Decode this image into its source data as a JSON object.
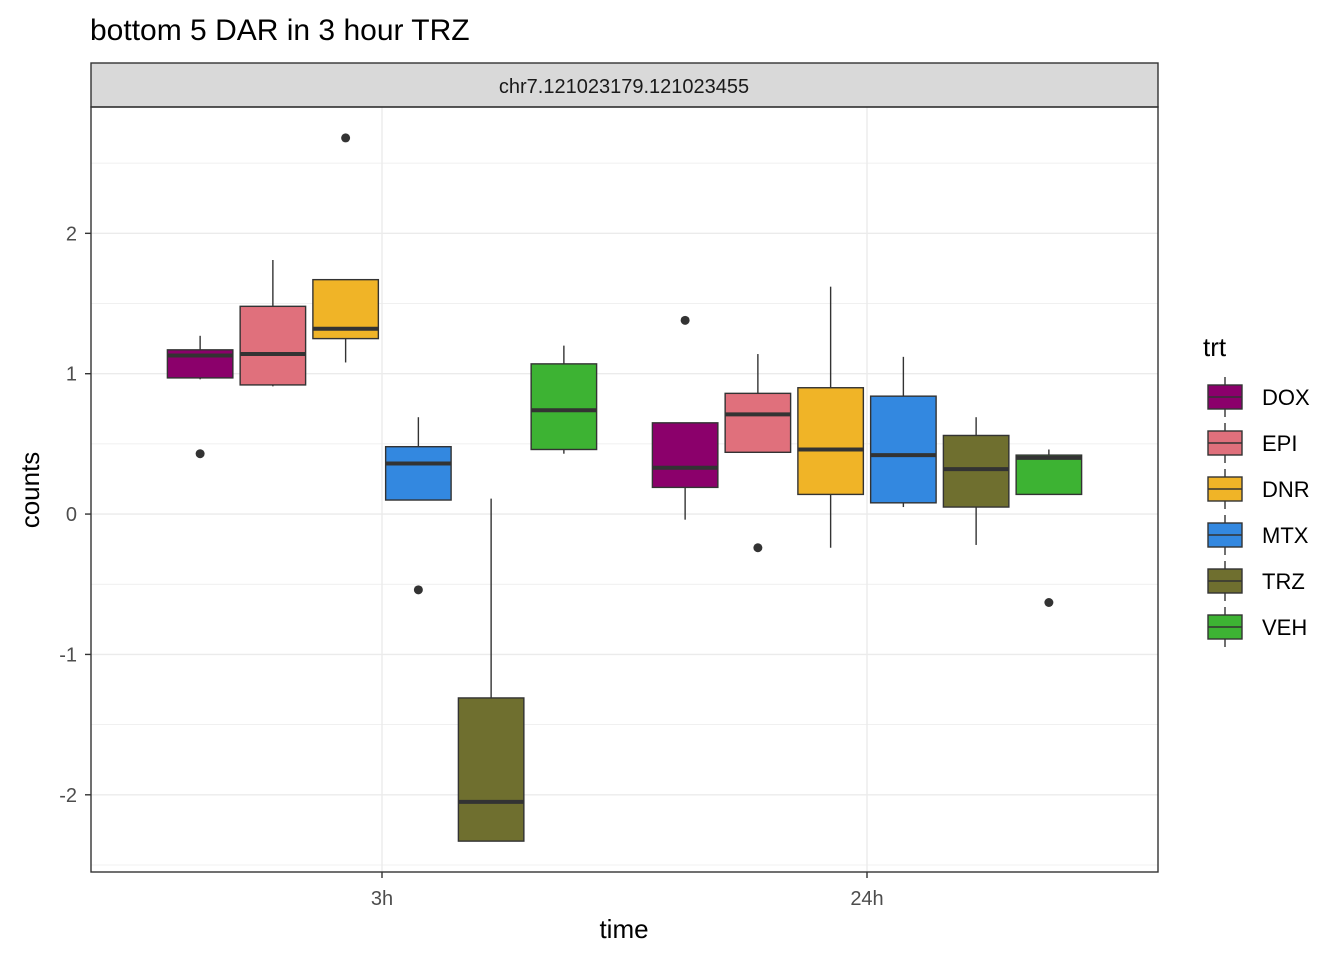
{
  "chart_data": {
    "type": "box",
    "title": "bottom 5 DAR in 3 hour TRZ",
    "facet_label": "chr7.121023179.121023455",
    "xlabel": "time",
    "ylabel": "counts",
    "categories": [
      "3h",
      "24h"
    ],
    "y_ticks": [
      -2,
      -1,
      0,
      1,
      2
    ],
    "ylim": [
      -2.55,
      2.9
    ],
    "grid": true,
    "legend": {
      "title": "trt",
      "position": "right",
      "items": [
        "DOX",
        "EPI",
        "DNR",
        "MTX",
        "TRZ",
        "VEH"
      ]
    },
    "colors": {
      "DOX": "#8B006B",
      "EPI": "#E0707C",
      "DNR": "#F0B427",
      "MTX": "#3388E0",
      "TRZ": "#6F6F2F",
      "VEH": "#3DB333"
    },
    "series": [
      {
        "name": "DOX",
        "boxes": [
          {
            "time": "3h",
            "lower_whisker": 0.96,
            "q1": 0.97,
            "median": 1.13,
            "q3": 1.17,
            "upper_whisker": 1.27,
            "outliers": [
              0.43
            ]
          },
          {
            "time": "24h",
            "lower_whisker": -0.04,
            "q1": 0.19,
            "median": 0.33,
            "q3": 0.65,
            "upper_whisker": 0.65,
            "outliers": [
              1.38
            ]
          }
        ]
      },
      {
        "name": "EPI",
        "boxes": [
          {
            "time": "3h",
            "lower_whisker": 0.91,
            "q1": 0.92,
            "median": 1.14,
            "q3": 1.48,
            "upper_whisker": 1.81,
            "outliers": []
          },
          {
            "time": "24h",
            "lower_whisker": 0.44,
            "q1": 0.44,
            "median": 0.71,
            "q3": 0.86,
            "upper_whisker": 1.14,
            "outliers": [
              -0.24
            ]
          }
        ]
      },
      {
        "name": "DNR",
        "boxes": [
          {
            "time": "3h",
            "lower_whisker": 1.08,
            "q1": 1.25,
            "median": 1.32,
            "q3": 1.67,
            "upper_whisker": 1.67,
            "outliers": [
              2.68
            ]
          },
          {
            "time": "24h",
            "lower_whisker": -0.24,
            "q1": 0.14,
            "median": 0.46,
            "q3": 0.9,
            "upper_whisker": 1.62,
            "outliers": []
          }
        ]
      },
      {
        "name": "MTX",
        "boxes": [
          {
            "time": "3h",
            "lower_whisker": 0.1,
            "q1": 0.1,
            "median": 0.36,
            "q3": 0.48,
            "upper_whisker": 0.69,
            "outliers": [
              -0.54
            ]
          },
          {
            "time": "24h",
            "lower_whisker": 0.05,
            "q1": 0.08,
            "median": 0.42,
            "q3": 0.84,
            "upper_whisker": 1.12,
            "outliers": []
          }
        ]
      },
      {
        "name": "TRZ",
        "boxes": [
          {
            "time": "3h",
            "lower_whisker": -2.33,
            "q1": -2.33,
            "median": -2.05,
            "q3": -1.31,
            "upper_whisker": 0.11,
            "outliers": []
          },
          {
            "time": "24h",
            "lower_whisker": -0.22,
            "q1": 0.05,
            "median": 0.32,
            "q3": 0.56,
            "upper_whisker": 0.69,
            "outliers": []
          }
        ]
      },
      {
        "name": "VEH",
        "boxes": [
          {
            "time": "3h",
            "lower_whisker": 0.43,
            "q1": 0.46,
            "median": 0.74,
            "q3": 1.07,
            "upper_whisker": 1.2,
            "outliers": []
          },
          {
            "time": "24h",
            "lower_whisker": 0.14,
            "q1": 0.14,
            "median": 0.4,
            "q3": 0.42,
            "upper_whisker": 0.46,
            "outliers": [
              -0.63
            ]
          }
        ]
      }
    ]
  }
}
